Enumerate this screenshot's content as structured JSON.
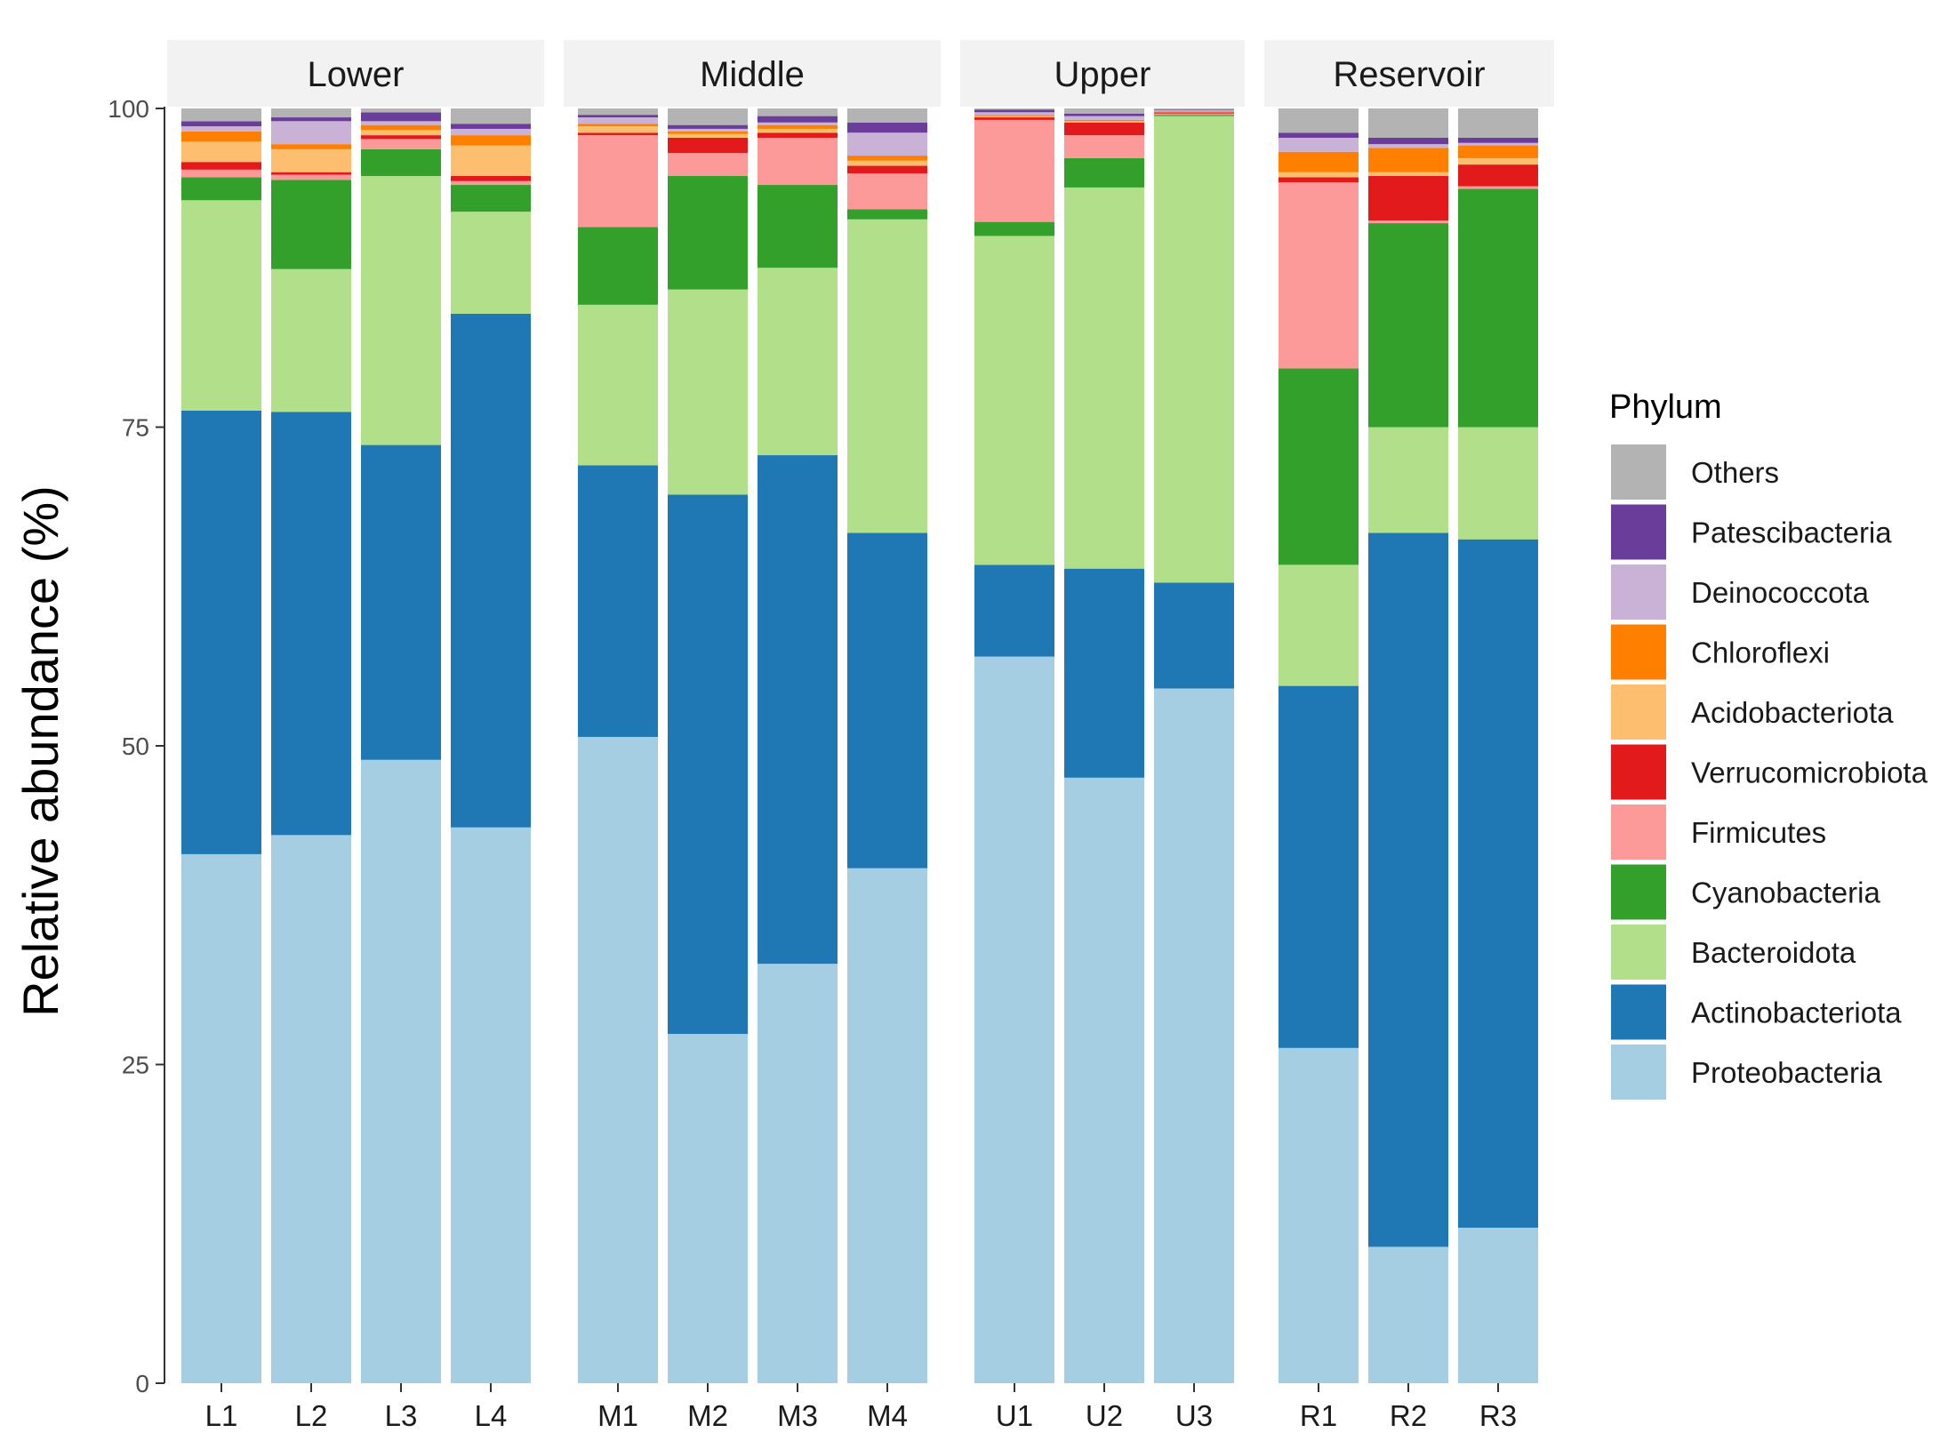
{
  "chart_data": {
    "type": "bar",
    "stacked": true,
    "ylabel": "Relative abundance (%)",
    "xlabel": "",
    "ylim": [
      0,
      100
    ],
    "yticks": [
      0,
      25,
      50,
      75,
      100
    ],
    "legend": {
      "title": "Phylum",
      "position": "right",
      "entries": [
        "Others",
        "Patescibacteria",
        "Deinococcota",
        "Chloroflexi",
        "Acidobacteriota",
        "Verrucomicrobiota",
        "Firmicutes",
        "Cyanobacteria",
        "Bacteroidota",
        "Actinobacteriota",
        "Proteobacteria"
      ]
    },
    "colors": {
      "Proteobacteria": "#a6cee3",
      "Actinobacteriota": "#1f78b4",
      "Bacteroidota": "#b2df8a",
      "Cyanobacteria": "#33a02c",
      "Firmicutes": "#fb9a99",
      "Verrucomicrobiota": "#e31a1c",
      "Acidobacteriota": "#fdbf6f",
      "Chloroflexi": "#ff7f00",
      "Deinococcota": "#cab2d6",
      "Patescibacteria": "#6a3d9a",
      "Others": "#b3b3b3"
    },
    "stack_order": [
      "Proteobacteria",
      "Actinobacteriota",
      "Bacteroidota",
      "Cyanobacteria",
      "Firmicutes",
      "Verrucomicrobiota",
      "Acidobacteriota",
      "Chloroflexi",
      "Deinococcota",
      "Patescibacteria",
      "Others"
    ],
    "facets": [
      {
        "name": "Lower",
        "samples": [
          {
            "name": "L1",
            "values": {
              "Proteobacteria": 41.5,
              "Actinobacteriota": 34.8,
              "Bacteroidota": 16.5,
              "Cyanobacteria": 1.8,
              "Firmicutes": 0.6,
              "Verrucomicrobiota": 0.6,
              "Acidobacteriota": 1.6,
              "Chloroflexi": 0.8,
              "Deinococcota": 0.4,
              "Patescibacteria": 0.4,
              "Others": 1.0
            }
          },
          {
            "name": "L2",
            "values": {
              "Proteobacteria": 43.0,
              "Actinobacteriota": 33.2,
              "Bacteroidota": 11.2,
              "Cyanobacteria": 7.0,
              "Firmicutes": 0.4,
              "Verrucomicrobiota": 0.2,
              "Acidobacteriota": 1.8,
              "Chloroflexi": 0.4,
              "Deinococcota": 1.8,
              "Patescibacteria": 0.3,
              "Others": 0.7
            }
          },
          {
            "name": "L3",
            "values": {
              "Proteobacteria": 48.9,
              "Actinobacteriota": 24.7,
              "Bacteroidota": 21.1,
              "Cyanobacteria": 2.1,
              "Firmicutes": 0.8,
              "Verrucomicrobiota": 0.3,
              "Acidobacteriota": 0.4,
              "Chloroflexi": 0.4,
              "Deinococcota": 0.3,
              "Patescibacteria": 0.7,
              "Others": 0.3
            }
          },
          {
            "name": "L4",
            "values": {
              "Proteobacteria": 43.6,
              "Actinobacteriota": 40.3,
              "Bacteroidota": 8.0,
              "Cyanobacteria": 2.1,
              "Firmicutes": 0.3,
              "Verrucomicrobiota": 0.4,
              "Acidobacteriota": 2.4,
              "Chloroflexi": 0.8,
              "Deinococcota": 0.5,
              "Patescibacteria": 0.4,
              "Others": 1.2
            }
          }
        ]
      },
      {
        "name": "Middle",
        "samples": [
          {
            "name": "M1",
            "values": {
              "Proteobacteria": 50.7,
              "Actinobacteriota": 21.3,
              "Bacteroidota": 12.6,
              "Cyanobacteria": 6.1,
              "Firmicutes": 7.2,
              "Verrucomicrobiota": 0.2,
              "Acidobacteriota": 0.5,
              "Chloroflexi": 0.2,
              "Deinococcota": 0.5,
              "Patescibacteria": 0.2,
              "Others": 0.5
            }
          },
          {
            "name": "M2",
            "values": {
              "Proteobacteria": 27.4,
              "Actinobacteriota": 42.3,
              "Bacteroidota": 16.1,
              "Cyanobacteria": 8.9,
              "Firmicutes": 1.8,
              "Verrucomicrobiota": 1.2,
              "Acidobacteriota": 0.3,
              "Chloroflexi": 0.2,
              "Deinococcota": 0.2,
              "Patescibacteria": 0.3,
              "Others": 1.3
            }
          },
          {
            "name": "M3",
            "values": {
              "Proteobacteria": 32.9,
              "Actinobacteriota": 39.9,
              "Bacteroidota": 14.7,
              "Cyanobacteria": 6.5,
              "Firmicutes": 3.7,
              "Verrucomicrobiota": 0.4,
              "Acidobacteriota": 0.3,
              "Chloroflexi": 0.3,
              "Deinococcota": 0.2,
              "Patescibacteria": 0.5,
              "Others": 0.6
            }
          },
          {
            "name": "M4",
            "values": {
              "Proteobacteria": 40.4,
              "Actinobacteriota": 26.3,
              "Bacteroidota": 24.6,
              "Cyanobacteria": 0.8,
              "Firmicutes": 2.8,
              "Verrucomicrobiota": 0.6,
              "Acidobacteriota": 0.4,
              "Chloroflexi": 0.4,
              "Deinococcota": 1.8,
              "Patescibacteria": 0.8,
              "Others": 1.1
            }
          }
        ]
      },
      {
        "name": "Upper",
        "samples": [
          {
            "name": "U1",
            "values": {
              "Proteobacteria": 57.0,
              "Actinobacteriota": 7.2,
              "Bacteroidota": 25.8,
              "Cyanobacteria": 1.1,
              "Firmicutes": 8.0,
              "Verrucomicrobiota": 0.2,
              "Acidobacteriota": 0.1,
              "Chloroflexi": 0.1,
              "Deinococcota": 0.2,
              "Patescibacteria": 0.2,
              "Others": 0.1
            }
          },
          {
            "name": "U2",
            "values": {
              "Proteobacteria": 47.5,
              "Actinobacteriota": 16.4,
              "Bacteroidota": 29.9,
              "Cyanobacteria": 2.3,
              "Firmicutes": 1.8,
              "Verrucomicrobiota": 1.0,
              "Acidobacteriota": 0.1,
              "Chloroflexi": 0.1,
              "Deinococcota": 0.3,
              "Patescibacteria": 0.2,
              "Others": 0.4
            }
          },
          {
            "name": "U3",
            "values": {
              "Proteobacteria": 54.5,
              "Actinobacteriota": 8.3,
              "Bacteroidota": 36.6,
              "Cyanobacteria": 0.1,
              "Firmicutes": 0.1,
              "Verrucomicrobiota": 0.1,
              "Acidobacteriota": 0.05,
              "Chloroflexi": 0.05,
              "Deinococcota": 0.05,
              "Patescibacteria": 0.05,
              "Others": 0.1
            }
          }
        ]
      },
      {
        "name": "Reservoir",
        "samples": [
          {
            "name": "R1",
            "values": {
              "Proteobacteria": 26.3,
              "Actinobacteriota": 28.4,
              "Bacteroidota": 9.5,
              "Cyanobacteria": 15.4,
              "Firmicutes": 14.6,
              "Verrucomicrobiota": 0.4,
              "Acidobacteriota": 0.4,
              "Chloroflexi": 1.6,
              "Deinococcota": 1.1,
              "Patescibacteria": 0.4,
              "Others": 1.9
            }
          },
          {
            "name": "R2",
            "values": {
              "Proteobacteria": 10.7,
              "Actinobacteriota": 56.0,
              "Bacteroidota": 8.3,
              "Cyanobacteria": 16.0,
              "Firmicutes": 0.2,
              "Verrucomicrobiota": 3.5,
              "Acidobacteriota": 0.3,
              "Chloroflexi": 1.9,
              "Deinococcota": 0.3,
              "Patescibacteria": 0.5,
              "Others": 2.3
            }
          },
          {
            "name": "R3",
            "values": {
              "Proteobacteria": 12.2,
              "Actinobacteriota": 54.0,
              "Bacteroidota": 8.8,
              "Cyanobacteria": 18.7,
              "Firmicutes": 0.2,
              "Verrucomicrobiota": 1.7,
              "Acidobacteriota": 0.5,
              "Chloroflexi": 1.0,
              "Deinococcota": 0.2,
              "Patescibacteria": 0.4,
              "Others": 2.3
            }
          }
        ]
      }
    ]
  }
}
